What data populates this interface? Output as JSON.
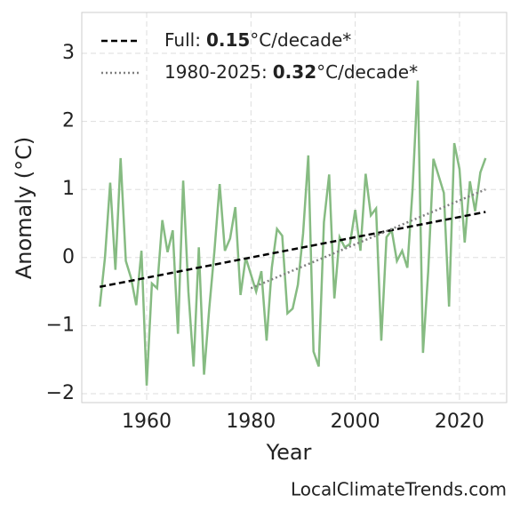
{
  "chart_data": {
    "type": "line",
    "xlabel": "Year",
    "ylabel": "Anomaly (°C)",
    "watermark": "LocalClimateTrends.com",
    "grid": true,
    "legend": "upper left",
    "x": [
      1951,
      1952,
      1953,
      1954,
      1955,
      1956,
      1957,
      1958,
      1959,
      1960,
      1961,
      1962,
      1963,
      1964,
      1965,
      1966,
      1967,
      1968,
      1969,
      1970,
      1971,
      1972,
      1973,
      1974,
      1975,
      1976,
      1977,
      1978,
      1979,
      1980,
      1981,
      1982,
      1983,
      1984,
      1985,
      1986,
      1987,
      1988,
      1989,
      1990,
      1991,
      1992,
      1993,
      1994,
      1995,
      1996,
      1997,
      1998,
      1999,
      2000,
      2001,
      2002,
      2003,
      2004,
      2005,
      2006,
      2007,
      2008,
      2009,
      2010,
      2011,
      2012,
      2013,
      2014,
      2015,
      2016,
      2017,
      2018,
      2019,
      2020,
      2021,
      2022,
      2023,
      2024,
      2025
    ],
    "values": [
      -0.72,
      0.0,
      1.1,
      -0.18,
      1.46,
      -0.05,
      -0.3,
      -0.7,
      0.1,
      -1.88,
      -0.38,
      -0.45,
      0.55,
      0.08,
      0.4,
      -1.12,
      1.13,
      -0.5,
      -1.6,
      0.15,
      -1.72,
      -0.75,
      0.1,
      1.08,
      0.1,
      0.28,
      0.74,
      -0.55,
      0.0,
      -0.25,
      -0.5,
      -0.2,
      -1.22,
      -0.15,
      0.42,
      0.32,
      -0.82,
      -0.75,
      -0.4,
      0.35,
      1.5,
      -1.38,
      -1.6,
      0.52,
      1.22,
      -0.6,
      0.3,
      0.15,
      0.2,
      0.7,
      0.1,
      1.23,
      0.62,
      0.72,
      -1.22,
      0.3,
      0.4,
      -0.05,
      0.1,
      -0.15,
      1.0,
      2.6,
      -1.4,
      -0.2,
      1.45,
      1.2,
      0.95,
      -0.72,
      1.68,
      1.3,
      0.22,
      1.12,
      0.68,
      1.25,
      1.46
    ],
    "color": "#86bb82",
    "trends": [
      {
        "name": "Full:",
        "slope": 0.15,
        "unit": "°C/decade*",
        "color": "#000000",
        "dash": "dashed",
        "x": [
          1951,
          2025
        ],
        "values": [
          -0.43,
          0.67
        ]
      },
      {
        "name": "1980-2025:",
        "slope": 0.32,
        "unit": "°C/decade*",
        "color": "#808080",
        "dash": "dotted",
        "x": [
          1980,
          2025
        ],
        "values": [
          -0.45,
          1.0
        ]
      }
    ],
    "xlim": [
      1947.55,
      2029.05
    ],
    "ylim": [
      -2.13,
      3.6
    ],
    "xticks": [
      1960,
      1980,
      2000,
      2020
    ],
    "yticks": [
      {
        "value": -2,
        "label": "−2"
      },
      {
        "value": -1,
        "label": "−1"
      },
      0,
      1,
      2,
      3
    ]
  }
}
